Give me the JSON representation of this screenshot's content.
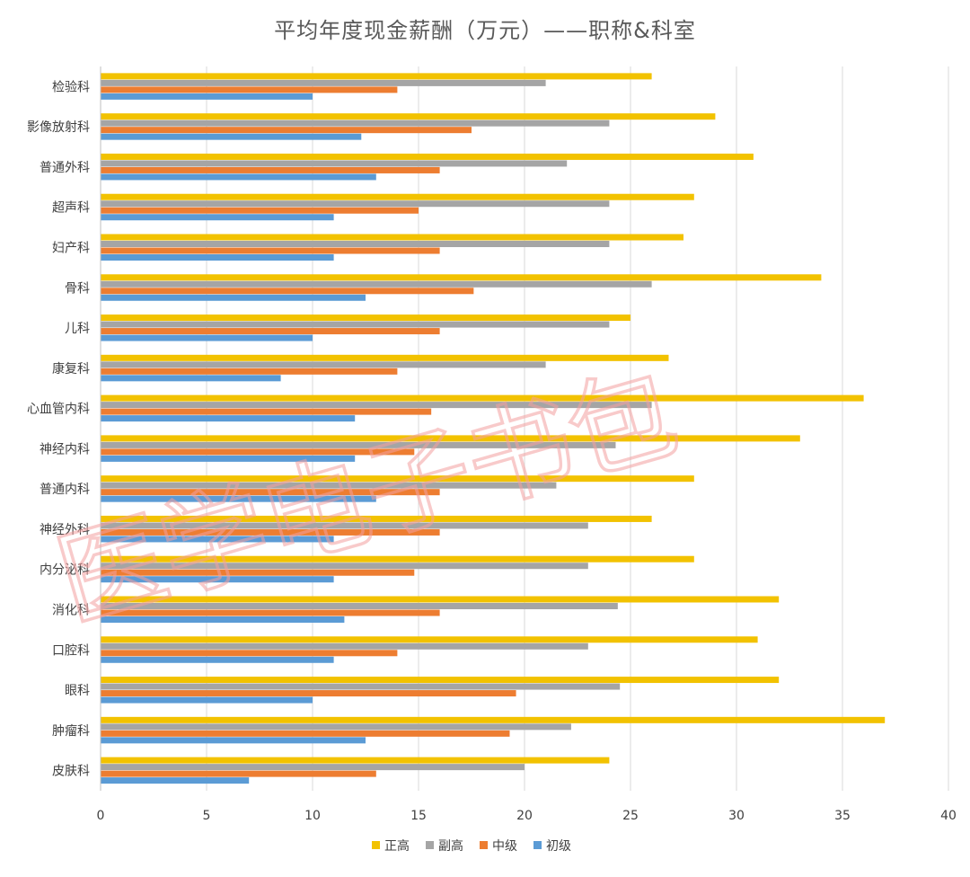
{
  "chart_data": {
    "type": "bar",
    "orientation": "horizontal",
    "title": "平均年度现金薪酬（万元）——职称&科室",
    "categories": [
      "检验科",
      "影像放射科",
      "普通外科",
      "超声科",
      "妇产科",
      "骨科",
      "儿科",
      "康复科",
      "心血管内科",
      "神经内科",
      "普通内科",
      "神经外科",
      "内分泌科",
      "消化科",
      "口腔科",
      "眼科",
      "肿瘤科",
      "皮肤科"
    ],
    "series": [
      {
        "name": "正高",
        "color": "#f2c200",
        "values": [
          26,
          29,
          30.8,
          28,
          27.5,
          34,
          25,
          26.8,
          36,
          33,
          28,
          26,
          28,
          32,
          31,
          32,
          37,
          24
        ]
      },
      {
        "name": "副高",
        "color": "#a5a5a5",
        "values": [
          21,
          24,
          22,
          24,
          24,
          26,
          24,
          21,
          26,
          24.3,
          21.5,
          23,
          23,
          24.4,
          23,
          24.5,
          22.2,
          20
        ]
      },
      {
        "name": "中级",
        "color": "#ed7d31",
        "values": [
          14,
          17.5,
          16,
          15,
          16,
          17.6,
          16,
          14,
          15.6,
          14.8,
          16,
          16,
          14.8,
          16,
          14,
          19.6,
          19.3,
          13
        ]
      },
      {
        "name": "初级",
        "color": "#5b9bd5",
        "values": [
          10,
          12.3,
          13,
          11,
          11,
          12.5,
          10,
          8.5,
          12,
          12,
          13,
          11,
          11,
          11.5,
          11,
          10,
          12.5,
          7
        ]
      }
    ],
    "xlim": [
      0,
      40
    ],
    "xticks": [
      0,
      5,
      10,
      15,
      20,
      25,
      30,
      35,
      40
    ],
    "grid": true,
    "legend_position": "bottom"
  },
  "watermark": {
    "text": "医学电子书包",
    "color": "#f4a0a0"
  }
}
